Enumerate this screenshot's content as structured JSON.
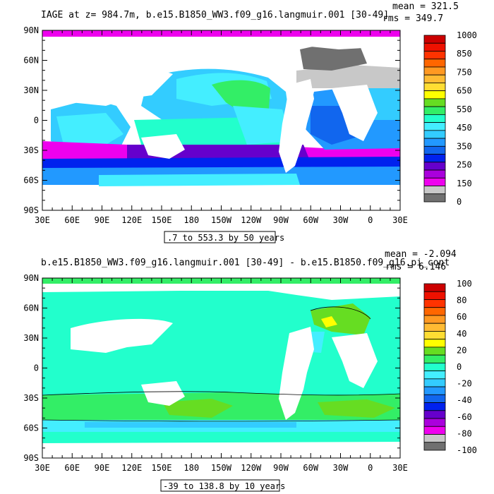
{
  "top_panel": {
    "title": "IAGE at z= 984.7m, b.e15.B1850_WW3.f09_g16.langmuir.001 [30-49]",
    "mean_text": "mean = 321.5",
    "rms_text": "rms = 349.7",
    "contour_info": ".7 to 553.3 by 50 years",
    "lat_labels": [
      "90N",
      "60N",
      "30N",
      "0",
      "30S",
      "60S",
      "90S"
    ],
    "lon_labels": [
      "30E",
      "60E",
      "90E",
      "120E",
      "150E",
      "180",
      "150W",
      "120W",
      "90W",
      "60W",
      "30W",
      "0",
      "30E"
    ],
    "colorbar_labels": [
      "1000",
      "850",
      "750",
      "650",
      "550",
      "450",
      "350",
      "250",
      "150",
      "0"
    ],
    "colorbar_colors": [
      "#cc0000",
      "#ee1100",
      "#ff3300",
      "#ff6600",
      "#ff9922",
      "#ffbb33",
      "#ffdd33",
      "#ffff00",
      "#66dd22",
      "#33ee66",
      "#22ffcc",
      "#44eeff",
      "#33ccff",
      "#2299ff",
      "#1166ee",
      "#0022ee",
      "#6600cc",
      "#aa00dd",
      "#ee00ee",
      "#c8c8c8",
      "#707070"
    ]
  },
  "bottom_panel": {
    "title": "b.e15.B1850_WW3.f09_g16.langmuir.001 [30-49] - b.e15.B1850.f09_g16.pi_cont",
    "mean_text": "mean = -2.094",
    "rms_text": "rms = 6.146",
    "contour_info": "-39 to 138.8 by 10 years",
    "lat_labels": [
      "90N",
      "60N",
      "30N",
      "0",
      "30S",
      "60S",
      "90S"
    ],
    "lon_labels": [
      "30E",
      "60E",
      "90E",
      "120E",
      "150E",
      "180",
      "150W",
      "120W",
      "90W",
      "60W",
      "30W",
      "0",
      "30E"
    ],
    "colorbar_labels": [
      "100",
      "80",
      "60",
      "40",
      "20",
      "0",
      "-20",
      "-40",
      "-60",
      "-80",
      "-100"
    ],
    "colorbar_colors": [
      "#cc0000",
      "#ee1100",
      "#ff3300",
      "#ff6600",
      "#ff9922",
      "#ffbb33",
      "#ffdd33",
      "#ffff00",
      "#66dd22",
      "#33ee66",
      "#22ffcc",
      "#44eeff",
      "#33ccff",
      "#2299ff",
      "#1166ee",
      "#0022ee",
      "#6600cc",
      "#aa00dd",
      "#ee00ee",
      "#c8c8c8",
      "#707070"
    ]
  }
}
